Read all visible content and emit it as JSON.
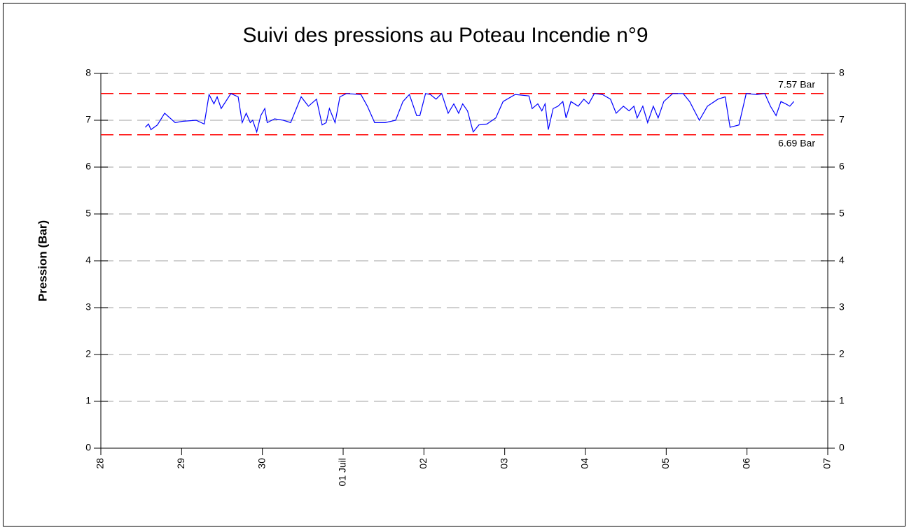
{
  "chart_data": {
    "type": "line",
    "title": "Suivi des pressions au Poteau Incendie n°9",
    "y_label": "Pression  (Bar)",
    "xlim": [
      0,
      9
    ],
    "xticks": [
      {
        "value": 0,
        "label": "28"
      },
      {
        "value": 1,
        "label": "29"
      },
      {
        "value": 2,
        "label": "30"
      },
      {
        "value": 3,
        "label": "01 Juil"
      },
      {
        "value": 4,
        "label": "02"
      },
      {
        "value": 5,
        "label": "03"
      },
      {
        "value": 6,
        "label": "04"
      },
      {
        "value": 7,
        "label": "05"
      },
      {
        "value": 8,
        "label": "06"
      },
      {
        "value": 9,
        "label": "07"
      }
    ],
    "ylim": [
      0,
      8
    ],
    "yticks": [
      0,
      1,
      2,
      3,
      4,
      5,
      6,
      7,
      8
    ],
    "grid": true,
    "thresholds": [
      {
        "value": 7.57,
        "label": "7.57 Bar",
        "color": "#ff0000"
      },
      {
        "value": 6.69,
        "label": "6.69 Bar",
        "color": "#ff0000"
      }
    ],
    "series": [
      {
        "name": "Pression",
        "color": "#0000ff",
        "x": [
          0.55,
          0.59,
          0.62,
          0.7,
          0.79,
          0.92,
          1.02,
          1.18,
          1.28,
          1.34,
          1.4,
          1.44,
          1.49,
          1.61,
          1.7,
          1.75,
          1.8,
          1.85,
          1.88,
          1.93,
          1.98,
          2.03,
          2.06,
          2.15,
          2.26,
          2.35,
          2.48,
          2.57,
          2.67,
          2.74,
          2.79,
          2.83,
          2.9,
          2.96,
          3.04,
          3.22,
          3.3,
          3.39,
          3.52,
          3.65,
          3.74,
          3.82,
          3.91,
          3.95,
          4.02,
          4.08,
          4.15,
          4.22,
          4.3,
          4.37,
          4.43,
          4.48,
          4.54,
          4.61,
          4.68,
          4.78,
          4.89,
          4.98,
          5.13,
          5.3,
          5.34,
          5.41,
          5.46,
          5.5,
          5.54,
          5.6,
          5.66,
          5.72,
          5.76,
          5.82,
          5.91,
          5.98,
          6.04,
          6.11,
          6.21,
          6.31,
          6.38,
          6.47,
          6.54,
          6.6,
          6.64,
          6.71,
          6.77,
          6.84,
          6.9,
          6.97,
          7.08,
          7.21,
          7.29,
          7.41,
          7.51,
          7.64,
          7.73,
          7.79,
          7.9,
          7.99,
          8.12,
          8.22,
          8.29,
          8.36,
          8.42,
          8.48,
          8.53,
          8.58
        ],
        "values": [
          6.85,
          6.92,
          6.8,
          6.9,
          7.15,
          6.95,
          6.98,
          7.0,
          6.92,
          7.55,
          7.35,
          7.5,
          7.25,
          7.57,
          7.5,
          6.95,
          7.15,
          6.95,
          7.0,
          6.75,
          7.1,
          7.25,
          6.95,
          7.03,
          7.0,
          6.95,
          7.5,
          7.3,
          7.45,
          6.9,
          6.95,
          7.25,
          6.95,
          7.5,
          7.57,
          7.55,
          7.3,
          6.95,
          6.95,
          7.0,
          7.4,
          7.55,
          7.1,
          7.1,
          7.57,
          7.55,
          7.45,
          7.57,
          7.15,
          7.35,
          7.15,
          7.35,
          7.2,
          6.75,
          6.9,
          6.92,
          7.05,
          7.4,
          7.55,
          7.52,
          7.25,
          7.35,
          7.2,
          7.35,
          6.8,
          7.25,
          7.3,
          7.4,
          7.05,
          7.4,
          7.3,
          7.45,
          7.35,
          7.57,
          7.55,
          7.45,
          7.15,
          7.3,
          7.2,
          7.3,
          7.05,
          7.3,
          6.95,
          7.3,
          7.05,
          7.4,
          7.57,
          7.57,
          7.4,
          7.0,
          7.3,
          7.45,
          7.5,
          6.85,
          6.9,
          7.57,
          7.55,
          7.57,
          7.3,
          7.1,
          7.4,
          7.35,
          7.3,
          7.4
        ]
      }
    ]
  }
}
